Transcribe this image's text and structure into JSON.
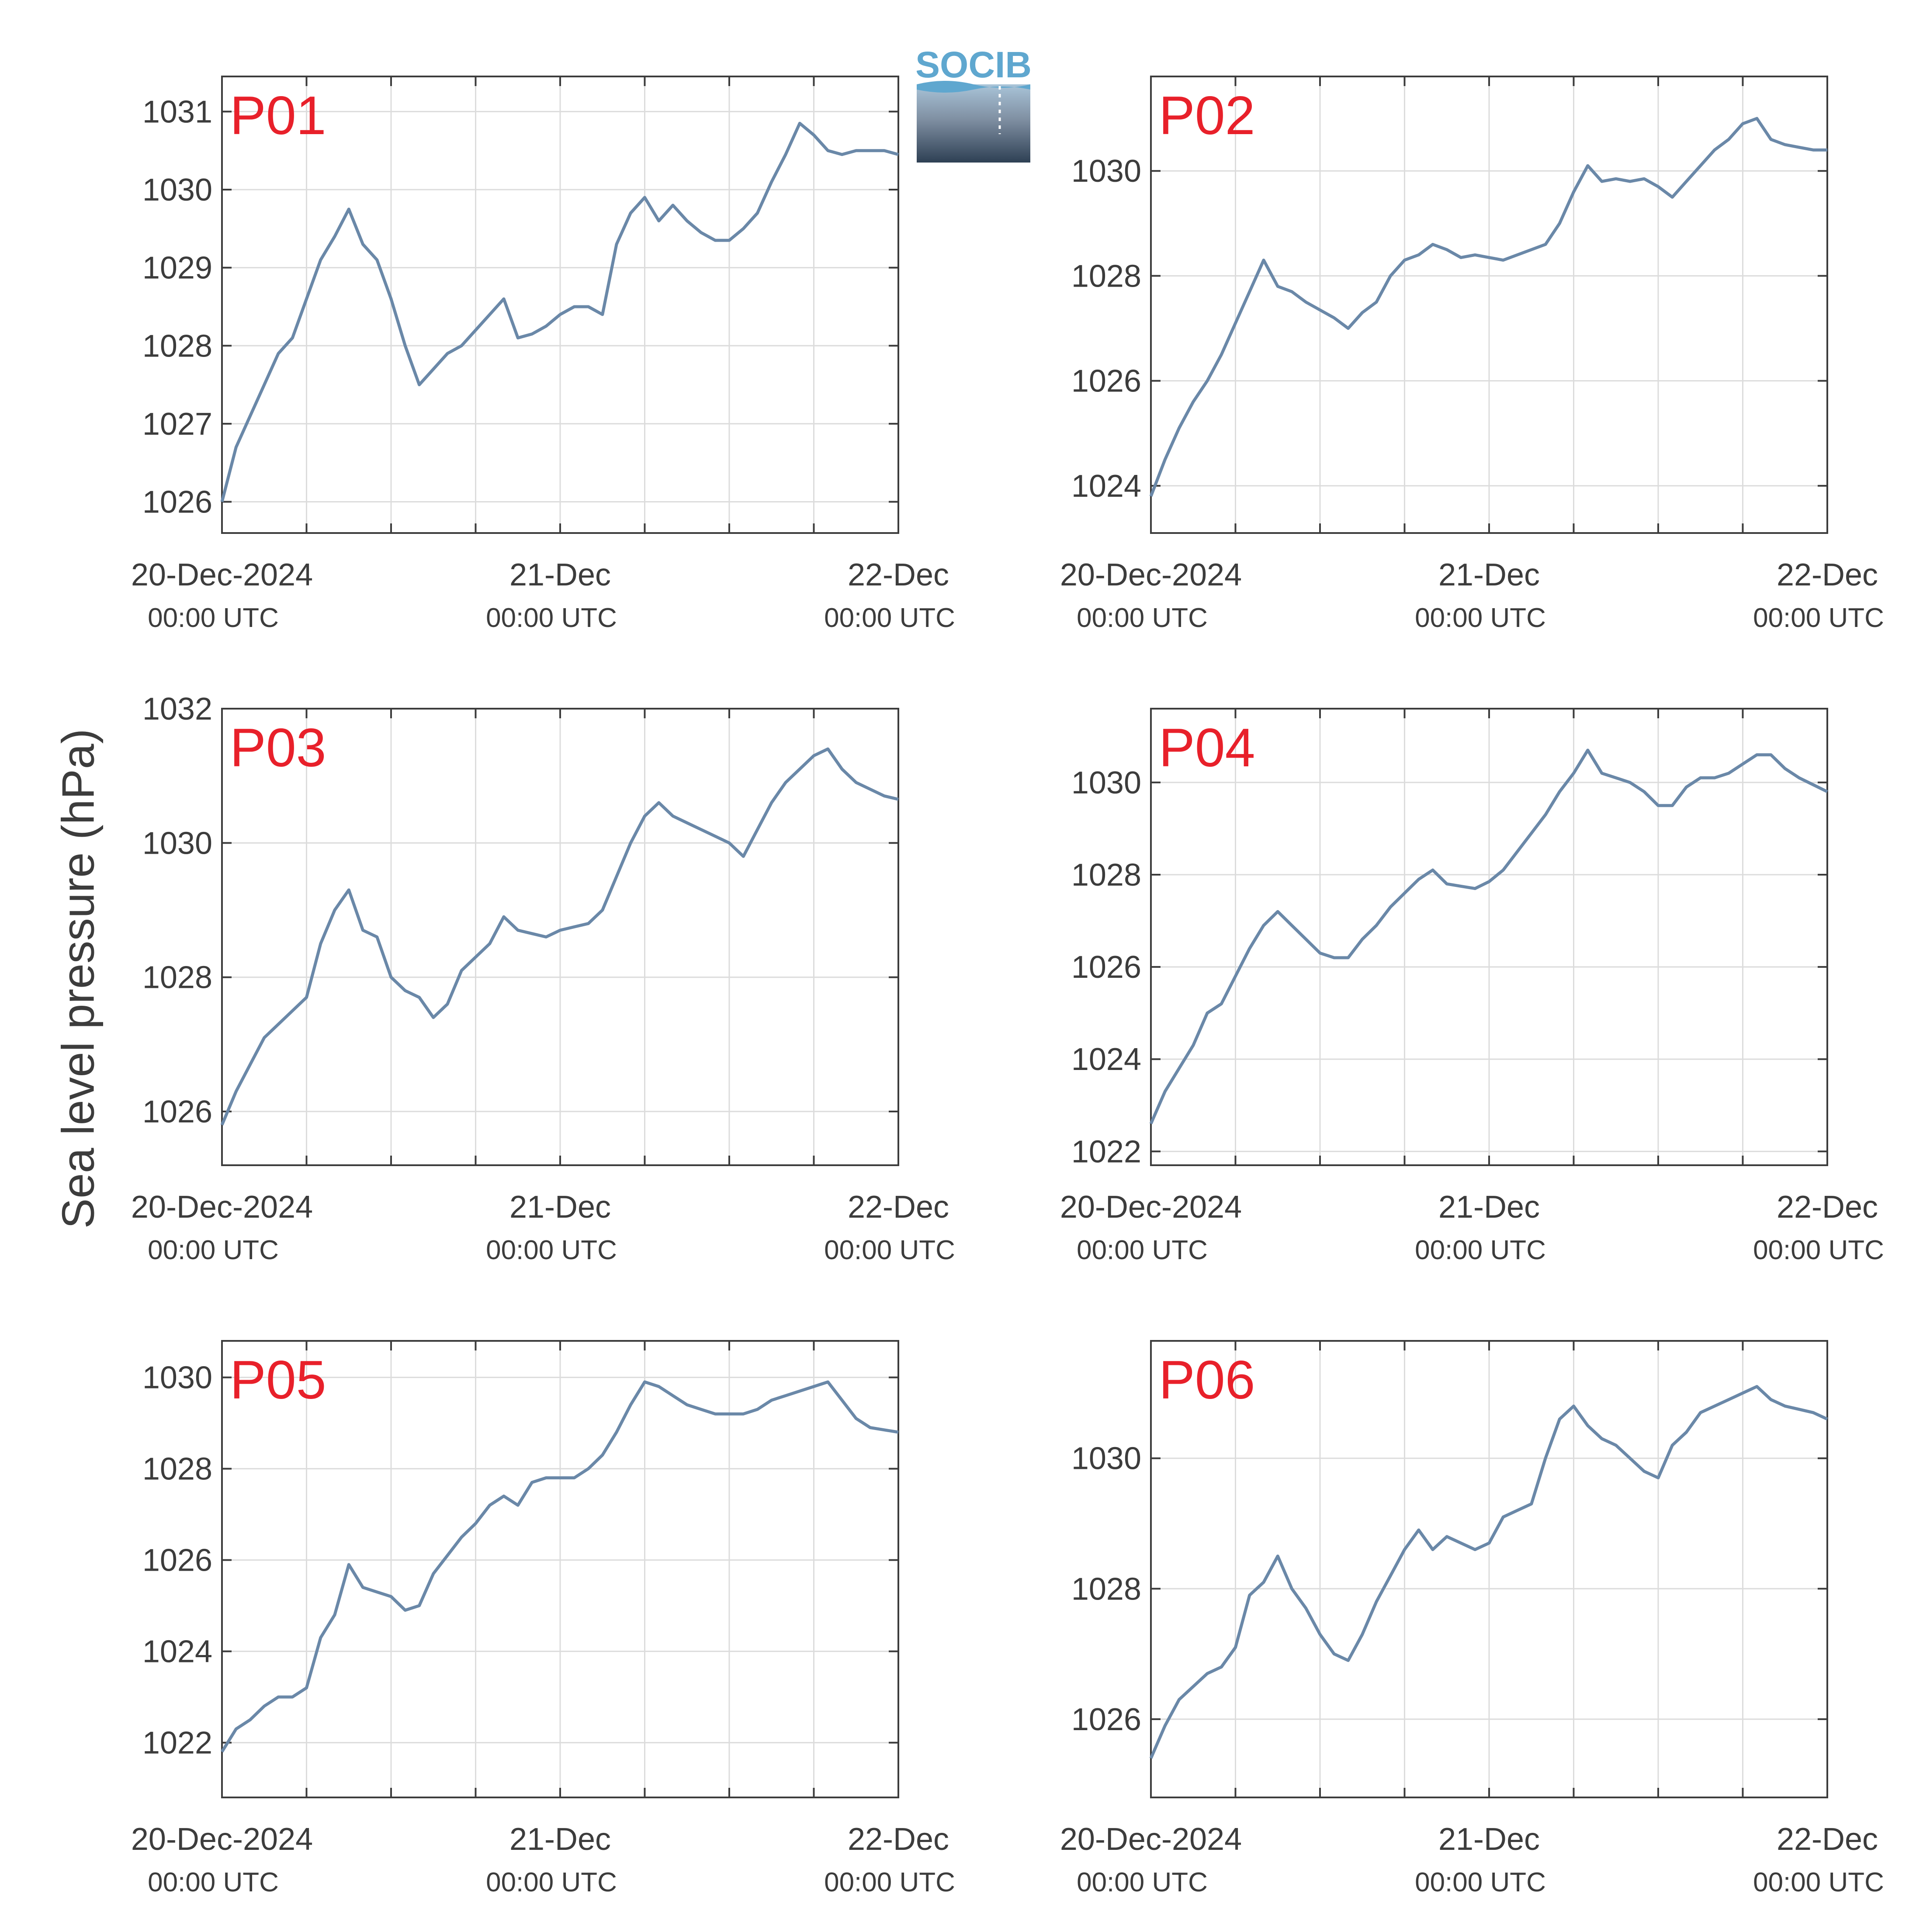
{
  "figure": {
    "ylabel": "Sea level pressure (hPa)",
    "logo_text": "SOCIB",
    "x_tick_labels": [
      "20-Dec-2024",
      "21-Dec",
      "22-Dec"
    ],
    "x_tick_sublabel": "00:00 UTC",
    "line_color": "#6a88a8",
    "label_color": "#e8202a"
  },
  "chart_data": [
    {
      "type": "line",
      "panel_label": "P01",
      "xlabel": "",
      "ylabel": "Sea level pressure (hPa)",
      "x_range_hours": [
        0,
        48
      ],
      "ylim": [
        1025.6,
        1031.45
      ],
      "yticks": [
        1026,
        1027,
        1028,
        1029,
        1030,
        1031
      ],
      "grid": true,
      "series": [
        {
          "x": [
            0,
            1,
            2,
            3,
            4,
            5,
            6,
            7,
            8,
            9,
            10,
            11,
            12,
            13,
            14,
            15,
            16,
            17,
            18,
            19,
            20,
            21,
            22,
            23,
            24,
            25,
            26,
            27,
            28,
            29,
            30,
            31,
            32,
            33,
            34,
            35,
            36,
            37,
            38,
            39,
            40,
            41,
            42,
            43,
            44,
            45,
            46,
            47,
            48
          ],
          "y": [
            1026.0,
            1026.7,
            1027.1,
            1027.5,
            1027.9,
            1028.1,
            1028.6,
            1029.1,
            1029.4,
            1029.75,
            1029.3,
            1029.1,
            1028.6,
            1028.0,
            1027.5,
            1027.7,
            1027.9,
            1028.0,
            1028.2,
            1028.4,
            1028.6,
            1028.1,
            1028.15,
            1028.25,
            1028.4,
            1028.5,
            1028.5,
            1028.4,
            1029.3,
            1029.7,
            1029.9,
            1029.6,
            1029.8,
            1029.6,
            1029.45,
            1029.35,
            1029.35,
            1029.5,
            1029.7,
            1030.1,
            1030.45,
            1030.85,
            1030.7,
            1030.5,
            1030.45,
            1030.5,
            1030.5,
            1030.5,
            1030.45
          ]
        }
      ]
    },
    {
      "type": "line",
      "panel_label": "P02",
      "xlabel": "",
      "ylabel": "Sea level pressure (hPa)",
      "x_range_hours": [
        0,
        48
      ],
      "ylim": [
        1023.1,
        1031.8
      ],
      "yticks": [
        1024,
        1026,
        1028,
        1030
      ],
      "grid": true,
      "series": [
        {
          "x": [
            0,
            1,
            2,
            3,
            4,
            5,
            6,
            7,
            8,
            9,
            10,
            11,
            12,
            13,
            14,
            15,
            16,
            17,
            18,
            19,
            20,
            21,
            22,
            23,
            24,
            25,
            26,
            27,
            28,
            29,
            30,
            31,
            32,
            33,
            34,
            35,
            36,
            37,
            38,
            39,
            40,
            41,
            42,
            43,
            44,
            45,
            46,
            47,
            48
          ],
          "y": [
            1023.8,
            1024.5,
            1025.1,
            1025.6,
            1026.0,
            1026.5,
            1027.1,
            1027.7,
            1028.3,
            1027.8,
            1027.7,
            1027.5,
            1027.35,
            1027.2,
            1027.0,
            1027.3,
            1027.5,
            1028.0,
            1028.3,
            1028.4,
            1028.6,
            1028.5,
            1028.35,
            1028.4,
            1028.35,
            1028.3,
            1028.4,
            1028.5,
            1028.6,
            1029.0,
            1029.6,
            1030.1,
            1029.8,
            1029.85,
            1029.8,
            1029.85,
            1029.7,
            1029.5,
            1029.8,
            1030.1,
            1030.4,
            1030.6,
            1030.9,
            1031.0,
            1030.6,
            1030.5,
            1030.45,
            1030.4,
            1030.4
          ]
        }
      ]
    },
    {
      "type": "line",
      "panel_label": "P03",
      "xlabel": "",
      "ylabel": "Sea level pressure (hPa)",
      "x_range_hours": [
        0,
        48
      ],
      "ylim": [
        1025.2,
        1032.0
      ],
      "yticks": [
        1026,
        1028,
        1030,
        1032
      ],
      "grid": true,
      "series": [
        {
          "x": [
            0,
            1,
            2,
            3,
            4,
            5,
            6,
            7,
            8,
            9,
            10,
            11,
            12,
            13,
            14,
            15,
            16,
            17,
            18,
            19,
            20,
            21,
            22,
            23,
            24,
            25,
            26,
            27,
            28,
            29,
            30,
            31,
            32,
            33,
            34,
            35,
            36,
            37,
            38,
            39,
            40,
            41,
            42,
            43,
            44,
            45,
            46,
            47,
            48
          ],
          "y": [
            1025.8,
            1026.3,
            1026.7,
            1027.1,
            1027.3,
            1027.5,
            1027.7,
            1028.5,
            1029.0,
            1029.3,
            1028.7,
            1028.6,
            1028.0,
            1027.8,
            1027.7,
            1027.4,
            1027.6,
            1028.1,
            1028.3,
            1028.5,
            1028.9,
            1028.7,
            1028.65,
            1028.6,
            1028.7,
            1028.75,
            1028.8,
            1029.0,
            1029.5,
            1030.0,
            1030.4,
            1030.6,
            1030.4,
            1030.3,
            1030.2,
            1030.1,
            1030.0,
            1029.8,
            1030.2,
            1030.6,
            1030.9,
            1031.1,
            1031.3,
            1031.4,
            1031.1,
            1030.9,
            1030.8,
            1030.7,
            1030.65
          ]
        }
      ]
    },
    {
      "type": "line",
      "panel_label": "P04",
      "xlabel": "",
      "ylabel": "Sea level pressure (hPa)",
      "x_range_hours": [
        0,
        48
      ],
      "ylim": [
        1021.7,
        1031.6
      ],
      "yticks": [
        1022,
        1024,
        1026,
        1028,
        1030
      ],
      "grid": true,
      "series": [
        {
          "x": [
            0,
            1,
            2,
            3,
            4,
            5,
            6,
            7,
            8,
            9,
            10,
            11,
            12,
            13,
            14,
            15,
            16,
            17,
            18,
            19,
            20,
            21,
            22,
            23,
            24,
            25,
            26,
            27,
            28,
            29,
            30,
            31,
            32,
            33,
            34,
            35,
            36,
            37,
            38,
            39,
            40,
            41,
            42,
            43,
            44,
            45,
            46,
            47,
            48
          ],
          "y": [
            1022.6,
            1023.3,
            1023.8,
            1024.3,
            1025.0,
            1025.2,
            1025.8,
            1026.4,
            1026.9,
            1027.2,
            1026.9,
            1026.6,
            1026.3,
            1026.2,
            1026.2,
            1026.6,
            1026.9,
            1027.3,
            1027.6,
            1027.9,
            1028.1,
            1027.8,
            1027.75,
            1027.7,
            1027.85,
            1028.1,
            1028.5,
            1028.9,
            1029.3,
            1029.8,
            1030.2,
            1030.7,
            1030.2,
            1030.1,
            1030.0,
            1029.8,
            1029.5,
            1029.5,
            1029.9,
            1030.1,
            1030.1,
            1030.2,
            1030.4,
            1030.6,
            1030.6,
            1030.3,
            1030.1,
            1029.95,
            1029.8
          ]
        }
      ]
    },
    {
      "type": "line",
      "panel_label": "P05",
      "xlabel": "",
      "ylabel": "Sea level pressure (hPa)",
      "x_range_hours": [
        0,
        48
      ],
      "ylim": [
        1020.8,
        1030.8
      ],
      "yticks": [
        1022,
        1024,
        1026,
        1028,
        1030
      ],
      "grid": true,
      "series": [
        {
          "x": [
            0,
            1,
            2,
            3,
            4,
            5,
            6,
            7,
            8,
            9,
            10,
            11,
            12,
            13,
            14,
            15,
            16,
            17,
            18,
            19,
            20,
            21,
            22,
            23,
            24,
            25,
            26,
            27,
            28,
            29,
            30,
            31,
            32,
            33,
            34,
            35,
            36,
            37,
            38,
            39,
            40,
            41,
            42,
            43,
            44,
            45,
            46,
            47,
            48
          ],
          "y": [
            1021.8,
            1022.3,
            1022.5,
            1022.8,
            1023.0,
            1023.0,
            1023.2,
            1024.3,
            1024.8,
            1025.9,
            1025.4,
            1025.3,
            1025.2,
            1024.9,
            1025.0,
            1025.7,
            1026.1,
            1026.5,
            1026.8,
            1027.2,
            1027.4,
            1027.2,
            1027.7,
            1027.8,
            1027.8,
            1027.8,
            1028.0,
            1028.3,
            1028.8,
            1029.4,
            1029.9,
            1029.8,
            1029.6,
            1029.4,
            1029.3,
            1029.2,
            1029.2,
            1029.2,
            1029.3,
            1029.5,
            1029.6,
            1029.7,
            1029.8,
            1029.9,
            1029.5,
            1029.1,
            1028.9,
            1028.85,
            1028.8
          ]
        }
      ]
    },
    {
      "type": "line",
      "panel_label": "P06",
      "xlabel": "",
      "ylabel": "Sea level pressure (hPa)",
      "x_range_hours": [
        0,
        48
      ],
      "ylim": [
        1024.8,
        1031.8
      ],
      "yticks": [
        1026,
        1028,
        1030
      ],
      "grid": true,
      "series": [
        {
          "x": [
            0,
            1,
            2,
            3,
            4,
            5,
            6,
            7,
            8,
            9,
            10,
            11,
            12,
            13,
            14,
            15,
            16,
            17,
            18,
            19,
            20,
            21,
            22,
            23,
            24,
            25,
            26,
            27,
            28,
            29,
            30,
            31,
            32,
            33,
            34,
            35,
            36,
            37,
            38,
            39,
            40,
            41,
            42,
            43,
            44,
            45,
            46,
            47,
            48
          ],
          "y": [
            1025.4,
            1025.9,
            1026.3,
            1026.5,
            1026.7,
            1026.8,
            1027.1,
            1027.9,
            1028.1,
            1028.5,
            1028.0,
            1027.7,
            1027.3,
            1027.0,
            1026.9,
            1027.3,
            1027.8,
            1028.2,
            1028.6,
            1028.9,
            1028.6,
            1028.8,
            1028.7,
            1028.6,
            1028.7,
            1029.1,
            1029.2,
            1029.3,
            1030.0,
            1030.6,
            1030.8,
            1030.5,
            1030.3,
            1030.2,
            1030.0,
            1029.8,
            1029.7,
            1030.2,
            1030.4,
            1030.7,
            1030.8,
            1030.9,
            1031.0,
            1031.1,
            1030.9,
            1030.8,
            1030.75,
            1030.7,
            1030.6
          ]
        }
      ]
    }
  ]
}
